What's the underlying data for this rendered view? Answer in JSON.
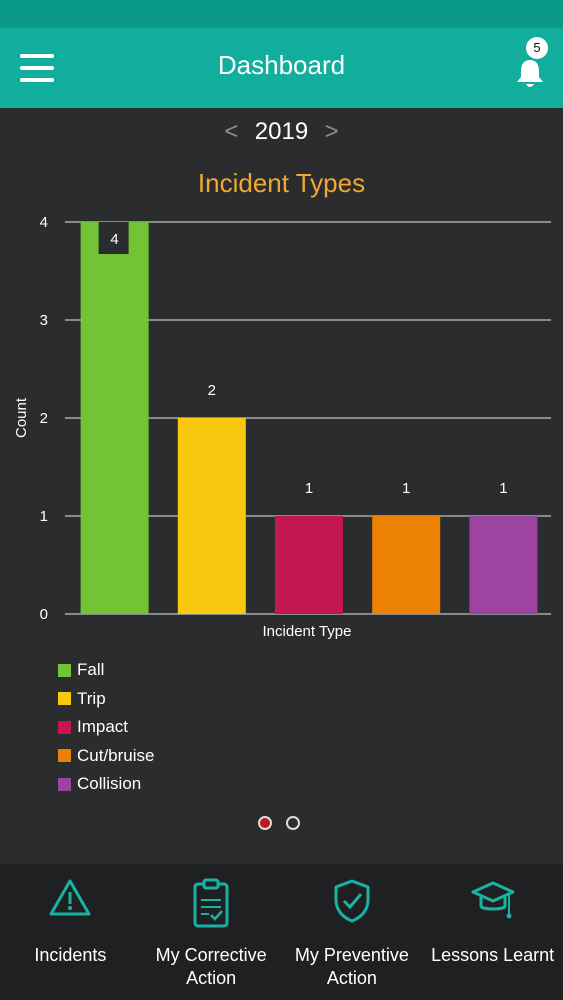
{
  "header": {
    "title": "Dashboard",
    "notification_count": "5"
  },
  "year_selector": {
    "prev": "<",
    "year": "2019",
    "next": ">"
  },
  "chart_title": "Incident Types",
  "chart_data": {
    "type": "bar",
    "title": "Incident Types",
    "xlabel": "Incident Type",
    "ylabel": "Count",
    "ylim": [
      0,
      4
    ],
    "yticks": [
      0,
      1,
      2,
      3,
      4
    ],
    "grid": true,
    "legend_position": "bottom-left",
    "categories": [
      "Fall",
      "Trip",
      "Impact",
      "Cut/bruise",
      "Collision"
    ],
    "values": [
      4,
      2,
      1,
      1,
      1
    ],
    "colors": [
      "#72c434",
      "#f9c80e",
      "#c4174f",
      "#ec8103",
      "#9c44a0"
    ]
  },
  "legend": [
    {
      "label": "Fall",
      "color": "#72c434"
    },
    {
      "label": "Trip",
      "color": "#f9c80e"
    },
    {
      "label": "Impact",
      "color": "#c4174f"
    },
    {
      "label": "Cut/bruise",
      "color": "#ec8103"
    },
    {
      "label": "Collision",
      "color": "#9c44a0"
    }
  ],
  "pager": {
    "count": 2,
    "active": 0
  },
  "bottom_nav": [
    {
      "label": "Incidents",
      "icon": "warning-icon"
    },
    {
      "label": "My Corrective Action",
      "icon": "clipboard-check-icon"
    },
    {
      "label": "My Preventive Action",
      "icon": "shield-check-icon"
    },
    {
      "label": "Lessons Learnt",
      "icon": "graduation-cap-icon"
    }
  ],
  "accent_color": "#11ae9d"
}
